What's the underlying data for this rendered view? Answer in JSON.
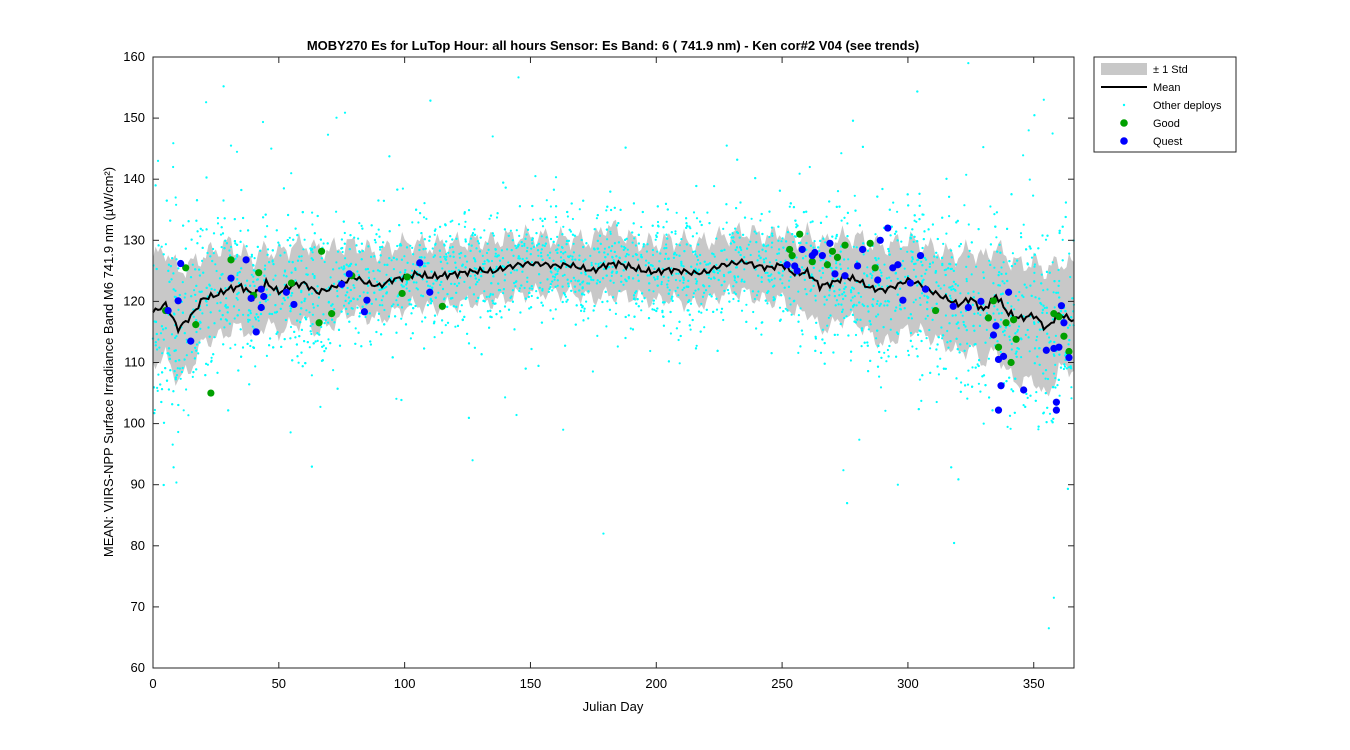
{
  "chart_data": {
    "type": "scatter",
    "title": "MOBY270   Es for LuTop  Hour: all hours  Sensor: Es Band: 6 ( 741.9 nm)  - Ken cor#2 V04 (see trends)",
    "xlabel": "Julian Day",
    "ylabel": "MEAN: VIIRS-NPP Surface Irradiance Band M6 741.9 nm (µW/cm²)",
    "xlim": [
      0,
      366
    ],
    "ylim": [
      60,
      160
    ],
    "xticks": [
      0,
      50,
      100,
      150,
      200,
      250,
      300,
      350
    ],
    "yticks": [
      60,
      70,
      80,
      90,
      100,
      110,
      120,
      130,
      140,
      150,
      160
    ],
    "grid": false,
    "legend_position": "outside-top-right",
    "legend": [
      "± 1 Std",
      "Mean",
      "Other deploys",
      "Good",
      "Quest"
    ],
    "colors": {
      "std_band": "#c8c8c8",
      "mean": "#000000",
      "other": "#00ffff",
      "good": "#00a000",
      "quest": "#0000ff"
    },
    "series": [
      {
        "name": "Mean",
        "x": [
          0,
          5,
          10,
          15,
          20,
          25,
          30,
          35,
          40,
          45,
          50,
          55,
          60,
          65,
          70,
          75,
          80,
          85,
          90,
          95,
          100,
          105,
          110,
          115,
          120,
          125,
          130,
          135,
          140,
          145,
          150,
          155,
          160,
          165,
          170,
          175,
          180,
          185,
          190,
          195,
          200,
          205,
          210,
          215,
          220,
          225,
          230,
          235,
          240,
          245,
          250,
          255,
          260,
          265,
          270,
          275,
          280,
          285,
          290,
          295,
          300,
          305,
          310,
          315,
          320,
          325,
          330,
          335,
          340,
          345,
          350,
          355,
          360,
          365
        ],
        "y": [
          118.2,
          119.5,
          115.5,
          117.5,
          120.5,
          121.0,
          122.0,
          122.5,
          121.0,
          123.0,
          121.5,
          122.5,
          123.0,
          121.5,
          122.0,
          123.0,
          124.0,
          123.0,
          122.5,
          123.5,
          124.0,
          124.5,
          124.0,
          124.2,
          124.5,
          124.8,
          125.0,
          124.9,
          125.5,
          126.0,
          126.2,
          126.1,
          125.8,
          126.0,
          125.5,
          125.0,
          126.0,
          126.2,
          125.6,
          125.0,
          124.8,
          125.2,
          125.0,
          124.6,
          124.8,
          125.8,
          126.2,
          126.5,
          125.8,
          125.5,
          126.0,
          124.5,
          124.8,
          122.5,
          123.0,
          124.0,
          123.5,
          122.2,
          121.8,
          122.5,
          123.5,
          122.8,
          121.5,
          120.5,
          119.5,
          120.5,
          118.5,
          121.0,
          118.0,
          117.2,
          117.8,
          115.5,
          118.0,
          117.0
        ]
      },
      {
        "name": "± 1 Std",
        "x": [
          0,
          5,
          10,
          15,
          20,
          25,
          30,
          35,
          40,
          45,
          50,
          55,
          60,
          65,
          70,
          75,
          80,
          85,
          90,
          95,
          100,
          105,
          110,
          115,
          120,
          125,
          130,
          135,
          140,
          145,
          150,
          155,
          160,
          165,
          170,
          175,
          180,
          185,
          190,
          195,
          200,
          205,
          210,
          215,
          220,
          225,
          230,
          235,
          240,
          245,
          250,
          255,
          260,
          265,
          270,
          275,
          280,
          285,
          290,
          295,
          300,
          305,
          310,
          315,
          320,
          325,
          330,
          335,
          340,
          345,
          350,
          355,
          360,
          365
        ],
        "upper": [
          127.0,
          128.5,
          125.0,
          126.0,
          127.5,
          128.5,
          129.5,
          128.0,
          127.0,
          128.5,
          128.0,
          129.0,
          129.5,
          128.5,
          128.5,
          129.0,
          129.5,
          128.5,
          128.0,
          129.0,
          129.5,
          129.5,
          129.0,
          129.5,
          129.5,
          129.8,
          130.0,
          129.8,
          130.5,
          130.5,
          130.8,
          130.5,
          130.2,
          130.5,
          130.0,
          130.0,
          132.5,
          131.5,
          130.2,
          129.5,
          129.5,
          130.0,
          130.0,
          129.5,
          129.8,
          130.5,
          131.0,
          131.5,
          131.0,
          130.5,
          131.5,
          130.0,
          131.0,
          129.5,
          130.0,
          130.5,
          130.5,
          129.5,
          129.0,
          129.5,
          130.0,
          129.5,
          128.5,
          128.0,
          127.5,
          128.5,
          127.0,
          129.0,
          127.0,
          126.0,
          126.5,
          125.0,
          126.5,
          126.0
        ],
        "lower": [
          110.0,
          111.0,
          107.0,
          109.0,
          113.5,
          114.0,
          115.0,
          116.0,
          114.0,
          116.5,
          115.0,
          116.0,
          117.0,
          115.0,
          116.0,
          117.5,
          118.5,
          117.5,
          117.0,
          118.0,
          119.0,
          119.5,
          119.0,
          119.0,
          119.5,
          119.8,
          120.0,
          120.0,
          120.5,
          121.0,
          121.5,
          121.5,
          121.5,
          121.5,
          121.0,
          120.5,
          121.0,
          121.0,
          120.8,
          120.5,
          120.0,
          120.5,
          120.0,
          119.5,
          120.0,
          121.0,
          121.5,
          121.5,
          120.5,
          120.0,
          120.5,
          118.0,
          118.5,
          115.5,
          116.0,
          117.5,
          116.5,
          114.5,
          113.0,
          114.0,
          115.5,
          115.0,
          114.0,
          113.0,
          111.5,
          112.5,
          110.0,
          112.0,
          108.0,
          106.5,
          107.5,
          104.0,
          109.0,
          109.0
        ]
      },
      {
        "name": "Good",
        "points": [
          [
            5,
            118.5
          ],
          [
            13,
            125.5
          ],
          [
            17,
            116.2
          ],
          [
            23,
            105.0
          ],
          [
            31,
            126.8
          ],
          [
            40,
            121.0
          ],
          [
            42,
            124.7
          ],
          [
            55,
            123.0
          ],
          [
            66,
            116.5
          ],
          [
            67,
            128.2
          ],
          [
            71,
            118.0
          ],
          [
            79,
            124.2
          ],
          [
            99,
            121.3
          ],
          [
            101,
            124.0
          ],
          [
            115,
            119.2
          ],
          [
            253,
            128.5
          ],
          [
            254,
            127.5
          ],
          [
            257,
            131.0
          ],
          [
            262,
            126.5
          ],
          [
            268,
            126.0
          ],
          [
            270,
            128.2
          ],
          [
            272,
            127.2
          ],
          [
            275,
            129.2
          ],
          [
            285,
            129.5
          ],
          [
            287,
            125.5
          ],
          [
            311,
            118.5
          ],
          [
            332,
            117.3
          ],
          [
            334,
            120.1
          ],
          [
            336,
            112.5
          ],
          [
            339,
            116.5
          ],
          [
            341,
            110.0
          ],
          [
            342,
            117.0
          ],
          [
            343,
            113.8
          ],
          [
            358,
            118.0
          ],
          [
            360,
            117.5
          ],
          [
            362,
            114.3
          ],
          [
            364,
            111.8
          ]
        ]
      },
      {
        "name": "Quest",
        "points": [
          [
            6,
            118.5
          ],
          [
            10,
            120.1
          ],
          [
            11,
            126.2
          ],
          [
            15,
            113.5
          ],
          [
            31,
            123.8
          ],
          [
            37,
            126.8
          ],
          [
            39,
            120.5
          ],
          [
            41,
            115.0
          ],
          [
            43,
            122.0
          ],
          [
            43,
            119.0
          ],
          [
            44,
            120.8
          ],
          [
            53,
            121.5
          ],
          [
            56,
            119.5
          ],
          [
            75,
            122.8
          ],
          [
            78,
            124.5
          ],
          [
            84,
            118.3
          ],
          [
            85,
            120.2
          ],
          [
            106,
            126.3
          ],
          [
            110,
            121.5
          ],
          [
            252,
            126.0
          ],
          [
            255,
            125.8
          ],
          [
            256,
            125.0
          ],
          [
            258,
            128.5
          ],
          [
            262,
            127.5
          ],
          [
            263,
            128.0
          ],
          [
            266,
            127.5
          ],
          [
            269,
            129.5
          ],
          [
            271,
            124.5
          ],
          [
            275,
            124.2
          ],
          [
            280,
            125.8
          ],
          [
            282,
            128.5
          ],
          [
            288,
            123.5
          ],
          [
            289,
            130.0
          ],
          [
            292,
            132.0
          ],
          [
            294,
            125.5
          ],
          [
            296,
            126.0
          ],
          [
            298,
            120.2
          ],
          [
            301,
            123.0
          ],
          [
            305,
            127.5
          ],
          [
            307,
            122.0
          ],
          [
            318,
            119.2
          ],
          [
            324,
            119.0
          ],
          [
            329,
            120.0
          ],
          [
            334,
            114.5
          ],
          [
            335,
            116.0
          ],
          [
            336,
            110.5
          ],
          [
            337,
            106.2
          ],
          [
            338,
            111.0
          ],
          [
            336,
            102.2
          ],
          [
            340,
            121.5
          ],
          [
            346,
            105.5
          ],
          [
            355,
            112.0
          ],
          [
            358,
            112.3
          ],
          [
            359,
            103.5
          ],
          [
            359,
            102.2
          ],
          [
            360,
            112.5
          ],
          [
            361,
            119.3
          ],
          [
            364,
            110.8
          ],
          [
            362,
            116.5
          ]
        ]
      },
      {
        "name": "Other deploys",
        "n_points": 4500,
        "annotation": "dense cloud of cyan points following the mean with about ±6 std spread; sparse outliers from ~66 to ~159"
      }
    ]
  }
}
